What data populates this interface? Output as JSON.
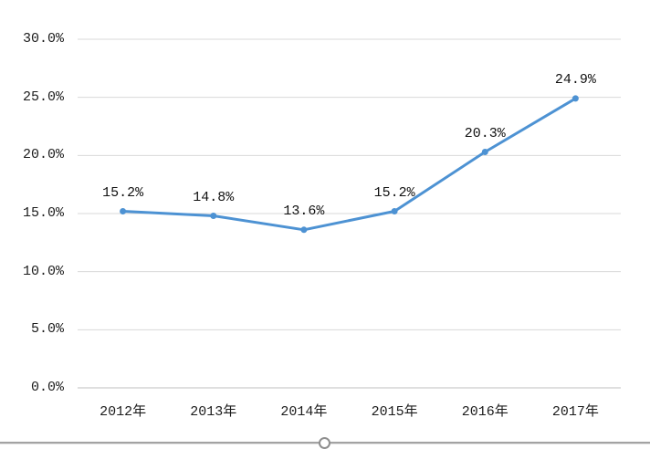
{
  "chart_data": {
    "type": "line",
    "categories": [
      "2012年",
      "2013年",
      "2014年",
      "2015年",
      "2016年",
      "2017年"
    ],
    "values": [
      15.2,
      14.8,
      13.6,
      15.2,
      20.3,
      24.9
    ],
    "data_labels": [
      "15.2%",
      "14.8%",
      "13.6%",
      "15.2%",
      "20.3%",
      "24.9%"
    ],
    "title": "",
    "xlabel": "",
    "ylabel": "",
    "ylim": [
      0,
      30
    ],
    "y_tick_step": 5,
    "y_ticks": [
      {
        "value": 30,
        "label": "30.0%"
      },
      {
        "value": 25,
        "label": "25.0%"
      },
      {
        "value": 20,
        "label": "20.0%"
      },
      {
        "value": 15,
        "label": "15.0%"
      },
      {
        "value": 10,
        "label": "10.0%"
      },
      {
        "value": 5,
        "label": "5.0%"
      },
      {
        "value": 0,
        "label": "0.0%"
      }
    ],
    "grid": "horizontal",
    "legend_position": "none",
    "series_name": "",
    "colors": {
      "line": "#4d92d3",
      "marker": "#4d92d3",
      "gridline": "#d9d9d9",
      "axis_line": "#bfbfbf",
      "tick_text": "#1c1c1c",
      "data_label_text": "#111111"
    },
    "marker_style": "circle"
  },
  "frame": {
    "bottom_border": true,
    "resize_handle": "bottom-center"
  }
}
